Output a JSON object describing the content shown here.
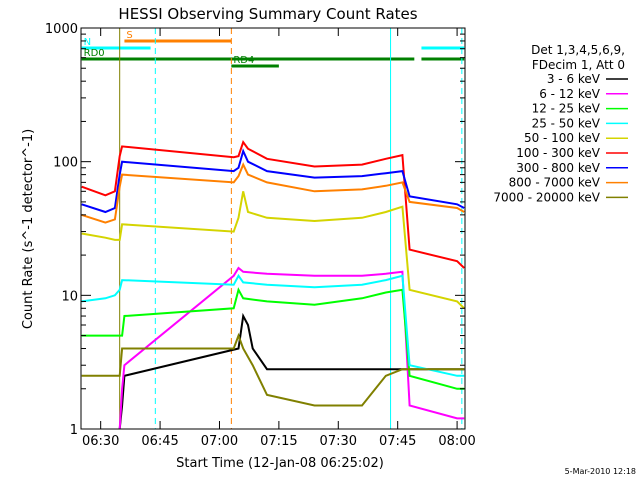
{
  "chart_data": {
    "type": "line",
    "title": "HESSI Observing Summary Count Rates",
    "xlabel": "Start Time (12-Jan-08 06:25:02)",
    "ylabel": "Count Rate (s^-1 detector^-1)",
    "yscale": "log",
    "ylim": [
      1,
      1000
    ],
    "xlim": [
      6.4172,
      8.0333
    ],
    "x_ticks": [
      {
        "value": 6.5,
        "label": "06:30"
      },
      {
        "value": 6.75,
        "label": "06:45"
      },
      {
        "value": 7.0,
        "label": "07:00"
      },
      {
        "value": 7.25,
        "label": "07:15"
      },
      {
        "value": 7.5,
        "label": "07:30"
      },
      {
        "value": 7.75,
        "label": "07:45"
      },
      {
        "value": 8.0,
        "label": "08:00"
      }
    ],
    "y_ticks": [
      {
        "value": 1,
        "label": "1"
      },
      {
        "value": 10,
        "label": "10"
      },
      {
        "value": 100,
        "label": "100"
      },
      {
        "value": 1000,
        "label": "1000"
      }
    ],
    "legend_header": [
      "Det 1,3,4,5,6,9,",
      "FDecim 1, Att 0"
    ],
    "series": [
      {
        "name": "3 - 6 keV",
        "color": "#000000",
        "x": [
          6.58,
          6.59,
          6.6,
          7.08,
          7.1,
          7.12,
          7.14,
          7.2,
          7.4,
          7.6,
          7.7,
          7.77,
          7.8,
          8.0,
          8.03
        ],
        "y": [
          1,
          1.5,
          2.5,
          4,
          7,
          6,
          4,
          2.8,
          2.8,
          2.8,
          2.8,
          2.8,
          2.8,
          2.8,
          2.8
        ]
      },
      {
        "name": "6 - 12 keV",
        "color": "#ff00ff",
        "x": [
          6.58,
          6.59,
          6.6,
          7.06,
          7.08,
          7.1,
          7.2,
          7.4,
          7.6,
          7.7,
          7.77,
          7.8,
          8.0,
          8.03
        ],
        "y": [
          1,
          2,
          3,
          14,
          16,
          15,
          14.5,
          14,
          14,
          14.5,
          15,
          1.5,
          1.2,
          1.2
        ]
      },
      {
        "name": "12 - 25 keV",
        "color": "#00ff00",
        "x": [
          6.42,
          6.56,
          6.58,
          6.59,
          6.6,
          7.06,
          7.08,
          7.1,
          7.2,
          7.4,
          7.6,
          7.7,
          7.77,
          7.8,
          8.0,
          8.03
        ],
        "y": [
          5,
          5,
          5,
          5,
          7,
          8,
          11,
          9.5,
          9,
          8.5,
          9.5,
          10.5,
          11,
          2.5,
          2,
          2
        ]
      },
      {
        "name": "25 - 50 keV",
        "color": "#00ffff",
        "x": [
          6.42,
          6.52,
          6.56,
          6.58,
          6.59,
          7.06,
          7.08,
          7.1,
          7.2,
          7.4,
          7.6,
          7.7,
          7.77,
          7.8,
          8.0,
          8.03
        ],
        "y": [
          9,
          9.5,
          10,
          11,
          13,
          12,
          14,
          12.5,
          12,
          11.5,
          12,
          13,
          14,
          3,
          2.5,
          2.5
        ]
      },
      {
        "name": "50 - 100 keV",
        "color": "#d4d400",
        "x": [
          6.42,
          6.52,
          6.56,
          6.58,
          6.59,
          7.06,
          7.08,
          7.1,
          7.12,
          7.2,
          7.4,
          7.6,
          7.7,
          7.77,
          7.8,
          8.0,
          8.03
        ],
        "y": [
          29,
          27,
          26,
          26,
          34,
          30,
          38,
          60,
          42,
          38,
          36,
          38,
          42,
          46,
          11,
          9,
          8
        ]
      },
      {
        "name": "100 - 300 keV",
        "color": "#ff0000",
        "x": [
          6.42,
          6.52,
          6.56,
          6.58,
          6.59,
          7.06,
          7.08,
          7.1,
          7.12,
          7.2,
          7.4,
          7.6,
          7.7,
          7.77,
          7.8,
          8.0,
          8.03
        ],
        "y": [
          65,
          56,
          60,
          110,
          130,
          108,
          110,
          140,
          125,
          105,
          92,
          95,
          105,
          112,
          22,
          18,
          16
        ]
      },
      {
        "name": "300 - 800 keV",
        "color": "#0000ff",
        "x": [
          6.42,
          6.52,
          6.56,
          6.58,
          6.59,
          7.06,
          7.08,
          7.1,
          7.12,
          7.2,
          7.4,
          7.6,
          7.7,
          7.77,
          7.8,
          8.0,
          8.03
        ],
        "y": [
          48,
          42,
          45,
          80,
          100,
          85,
          90,
          120,
          100,
          85,
          76,
          78,
          82,
          85,
          55,
          48,
          45
        ]
      },
      {
        "name": "800 - 7000 keV",
        "color": "#ff8000",
        "x": [
          6.42,
          6.52,
          6.56,
          6.58,
          6.59,
          7.06,
          7.08,
          7.1,
          7.12,
          7.2,
          7.4,
          7.6,
          7.7,
          7.77,
          7.8,
          8.0,
          8.03
        ],
        "y": [
          40,
          35,
          37,
          65,
          80,
          70,
          78,
          95,
          80,
          70,
          60,
          62,
          66,
          70,
          50,
          45,
          42
        ]
      },
      {
        "name": "7000 - 20000 keV",
        "color": "#808000",
        "x": [
          6.42,
          6.56,
          6.58,
          6.59,
          6.6,
          7.06,
          7.08,
          7.1,
          7.14,
          7.2,
          7.4,
          7.6,
          7.7,
          7.77,
          7.8,
          8.0,
          8.03
        ],
        "y": [
          2.5,
          2.5,
          2.5,
          4,
          4,
          4,
          5,
          4,
          3,
          1.8,
          1.5,
          1.5,
          2.5,
          2.8,
          2.8,
          2.8,
          2.8
        ]
      }
    ],
    "flag_bars": [
      {
        "label": "S",
        "color": "#ff8000",
        "segments": [
          [
            6.6,
            7.05
          ]
        ]
      },
      {
        "label": "N",
        "color": "#00ffff",
        "segments": [
          [
            6.42,
            6.71
          ],
          [
            7.85,
            8.03
          ]
        ]
      },
      {
        "label": "RD0",
        "color": "#008000",
        "segments": [
          [
            6.42,
            7.82
          ],
          [
            7.85,
            8.03
          ]
        ]
      },
      {
        "label": "RD4",
        "color": "#008000",
        "segments": [
          [
            7.05,
            7.25
          ]
        ]
      }
    ],
    "vertical_markers": [
      {
        "x": 6.58,
        "color": "#808000",
        "style": "solid"
      },
      {
        "x": 6.73,
        "color": "#00ffff",
        "style": "dashed"
      },
      {
        "x": 7.05,
        "color": "#ff8000",
        "style": "dashed"
      },
      {
        "x": 7.72,
        "color": "#00ffff",
        "style": "solid"
      },
      {
        "x": 8.02,
        "color": "#00ffff",
        "style": "dashed"
      }
    ],
    "grid": false,
    "legend_position": "right",
    "timestamp": "5-Mar-2010 12:18"
  }
}
